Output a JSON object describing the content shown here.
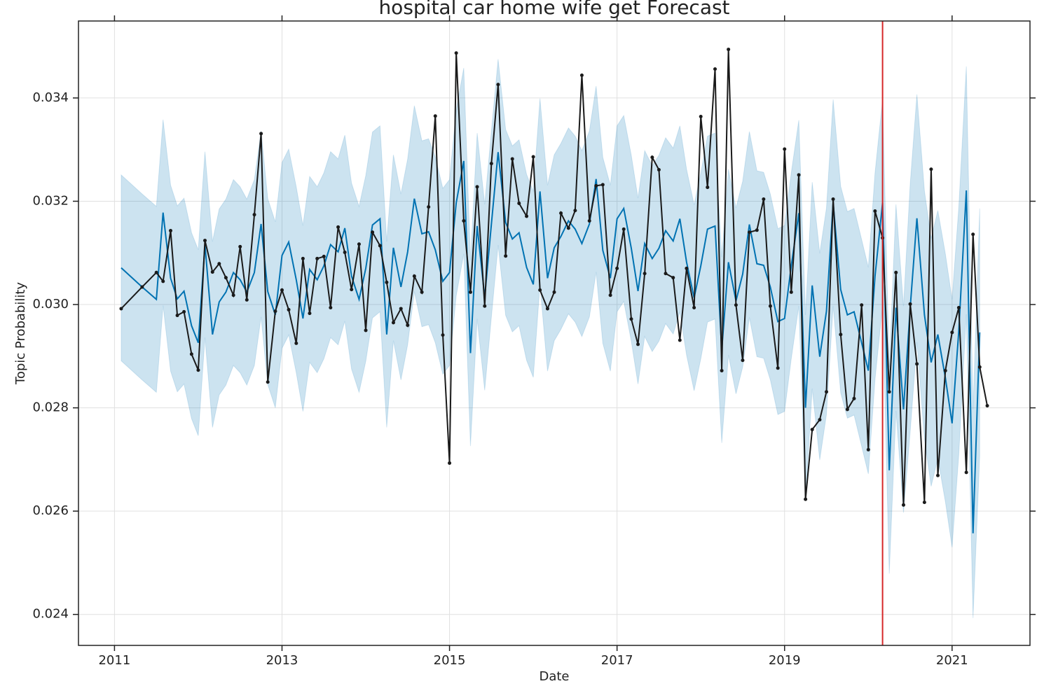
{
  "chart_data": {
    "type": "line",
    "title": "hospital car home wife get Forecast",
    "x_label": "Date",
    "y_label": "Topic Probability",
    "xlim": [
      2010.57,
      2021.93
    ],
    "xticks": [
      2011,
      2013,
      2015,
      2017,
      2019,
      2021
    ],
    "ylim": [
      0.0234,
      0.03549
    ],
    "yticks": [
      0.024,
      0.026,
      0.028,
      {
        "value": 0.03,
        "label": "0.030"
      },
      0.032,
      0.034
    ],
    "grid": true,
    "x": [
      2011.08,
      2011.33,
      2011.5,
      2011.58,
      2011.67,
      2011.75,
      2011.83,
      2011.92,
      2012,
      2012.08,
      2012.17,
      2012.25,
      2012.33,
      2012.42,
      2012.5,
      2012.58,
      2012.67,
      2012.75,
      2012.83,
      2012.92,
      2013,
      2013.08,
      2013.17,
      2013.25,
      2013.33,
      2013.42,
      2013.5,
      2013.58,
      2013.67,
      2013.75,
      2013.83,
      2013.92,
      2014,
      2014.08,
      2014.17,
      2014.25,
      2014.33,
      2014.42,
      2014.5,
      2014.58,
      2014.67,
      2014.75,
      2014.83,
      2014.92,
      2015,
      2015.08,
      2015.17,
      2015.25,
      2015.33,
      2015.42,
      2015.5,
      2015.58,
      2015.67,
      2015.75,
      2015.83,
      2015.92,
      2016,
      2016.08,
      2016.17,
      2016.25,
      2016.33,
      2016.42,
      2016.5,
      2016.58,
      2016.67,
      2016.75,
      2016.83,
      2016.92,
      2017,
      2017.08,
      2017.17,
      2017.25,
      2017.33,
      2017.42,
      2017.5,
      2017.58,
      2017.67,
      2017.75,
      2017.83,
      2017.92,
      2018,
      2018.08,
      2018.17,
      2018.25,
      2018.33,
      2018.42,
      2018.5,
      2018.58,
      2018.67,
      2018.75,
      2018.83,
      2018.92,
      2019,
      2019.08,
      2019.17,
      2019.25,
      2019.33,
      2019.42,
      2019.5,
      2019.58,
      2019.67,
      2019.75,
      2019.83,
      2019.92,
      2020,
      2020.08,
      2020.17,
      2020.25,
      2020.33,
      2020.42,
      2020.5,
      2020.58,
      2020.67,
      2020.75,
      2020.83,
      2020.92,
      2021,
      2021.08,
      2021.17,
      2021.25,
      2021.33,
      2021.42
    ],
    "band": {
      "color": "#0072b2",
      "opacity": 0.2,
      "upper": [
        0.03251,
        0.03214,
        0.0319,
        0.03358,
        0.03231,
        0.03191,
        0.03206,
        0.03139,
        0.03106,
        0.03296,
        0.03122,
        0.03185,
        0.03204,
        0.03242,
        0.03228,
        0.03204,
        0.03242,
        0.03336,
        0.03205,
        0.0316,
        0.03275,
        0.03301,
        0.03228,
        0.03153,
        0.03248,
        0.03228,
        0.03255,
        0.03296,
        0.03282,
        0.03328,
        0.03235,
        0.0319,
        0.0325,
        0.03334,
        0.03346,
        0.03122,
        0.0329,
        0.03214,
        0.03282,
        0.03385,
        0.03317,
        0.03321,
        0.03286,
        0.03225,
        0.03242,
        0.03377,
        0.03458,
        0.03086,
        0.03332,
        0.03194,
        0.03336,
        0.03475,
        0.03339,
        0.03307,
        0.03319,
        0.03252,
        0.03219,
        0.03399,
        0.03231,
        0.0329,
        0.03312,
        0.03342,
        0.03326,
        0.03298,
        0.03336,
        0.03423,
        0.03285,
        0.03231,
        0.03346,
        0.03366,
        0.03289,
        0.03206,
        0.03298,
        0.03269,
        0.03289,
        0.03323,
        0.03303,
        0.03346,
        0.03262,
        0.03193,
        0.03255,
        0.03326,
        0.03332,
        0.03092,
        0.03262,
        0.03187,
        0.03239,
        0.03335,
        0.03259,
        0.03256,
        0.03214,
        0.03147,
        0.03153,
        0.03255,
        0.03357,
        0.0298,
        0.03237,
        0.03099,
        0.03187,
        0.03397,
        0.03229,
        0.0318,
        0.03186,
        0.03126,
        0.03072,
        0.03255,
        0.03397,
        0.02879,
        0.03194,
        0.02997,
        0.03234,
        0.03407,
        0.0322,
        0.03128,
        0.03182,
        0.03098,
        0.0301,
        0.03189,
        0.03461,
        0.02797,
        0.03186,
        null
      ],
      "lower": [
        0.02891,
        0.02854,
        0.0283,
        0.02998,
        0.02871,
        0.02831,
        0.02846,
        0.02779,
        0.02746,
        0.02936,
        0.02762,
        0.02825,
        0.02844,
        0.02882,
        0.02868,
        0.02844,
        0.02882,
        0.02976,
        0.02845,
        0.028,
        0.02915,
        0.02941,
        0.02868,
        0.02793,
        0.02888,
        0.02868,
        0.02895,
        0.02936,
        0.02922,
        0.02968,
        0.02875,
        0.0283,
        0.0289,
        0.02974,
        0.02986,
        0.02762,
        0.0293,
        0.02854,
        0.02922,
        0.03025,
        0.02957,
        0.02961,
        0.02926,
        0.02865,
        0.02882,
        0.03017,
        0.03098,
        0.02726,
        0.02972,
        0.02834,
        0.02976,
        0.03115,
        0.02979,
        0.02947,
        0.02959,
        0.02892,
        0.02859,
        0.03039,
        0.02871,
        0.0293,
        0.02952,
        0.02982,
        0.02966,
        0.02938,
        0.02976,
        0.03063,
        0.02925,
        0.02871,
        0.02986,
        0.03006,
        0.02929,
        0.02846,
        0.02938,
        0.02909,
        0.02929,
        0.02963,
        0.02943,
        0.02986,
        0.02902,
        0.02833,
        0.02895,
        0.02966,
        0.02972,
        0.02732,
        0.02902,
        0.02827,
        0.02879,
        0.02975,
        0.02899,
        0.02896,
        0.02854,
        0.02787,
        0.02793,
        0.02895,
        0.02997,
        0.0262,
        0.02837,
        0.02699,
        0.02787,
        0.02997,
        0.02829,
        0.0278,
        0.02786,
        0.02726,
        0.02672,
        0.02855,
        0.02997,
        0.02479,
        0.02794,
        0.02597,
        0.02754,
        0.02927,
        0.0274,
        0.02648,
        0.02702,
        0.02618,
        0.0253,
        0.02709,
        0.02981,
        0.02393,
        0.02706,
        null
      ]
    },
    "series": [
      {
        "color": "#0072b2",
        "markers": false,
        "values": [
          0.03071,
          0.03034,
          0.0301,
          0.03178,
          0.03051,
          0.03011,
          0.03026,
          0.02959,
          0.02926,
          0.03116,
          0.02942,
          0.03005,
          0.03024,
          0.03062,
          0.03048,
          0.03024,
          0.03062,
          0.03156,
          0.03025,
          0.0298,
          0.03095,
          0.03121,
          0.03048,
          0.02973,
          0.03068,
          0.03048,
          0.03075,
          0.03116,
          0.03102,
          0.03148,
          0.03055,
          0.0301,
          0.0307,
          0.03154,
          0.03166,
          0.02942,
          0.0311,
          0.03034,
          0.03102,
          0.03205,
          0.03137,
          0.03141,
          0.03106,
          0.03045,
          0.03062,
          0.03197,
          0.03278,
          0.02906,
          0.03152,
          0.03014,
          0.03156,
          0.03295,
          0.03159,
          0.03127,
          0.03139,
          0.03072,
          0.03039,
          0.03219,
          0.03051,
          0.0311,
          0.03132,
          0.03162,
          0.03146,
          0.03118,
          0.03156,
          0.03243,
          0.03105,
          0.03051,
          0.03166,
          0.03186,
          0.03109,
          0.03026,
          0.03118,
          0.03089,
          0.03109,
          0.03143,
          0.03123,
          0.03166,
          0.03082,
          0.03013,
          0.03075,
          0.03146,
          0.03152,
          0.02912,
          0.03082,
          0.03007,
          0.03059,
          0.03155,
          0.03079,
          0.03076,
          0.03034,
          0.02967,
          0.02973,
          0.03075,
          0.03177,
          0.028,
          0.03037,
          0.02899,
          0.02987,
          0.03197,
          0.03029,
          0.0298,
          0.02986,
          0.02926,
          0.02872,
          0.03055,
          0.03197,
          0.02679,
          0.02994,
          0.02797,
          0.02994,
          0.03167,
          0.0298,
          0.02888,
          0.02942,
          0.02858,
          0.0277,
          0.02949,
          0.03221,
          0.02557,
          0.02946,
          null
        ]
      },
      {
        "color": "#1a1a1a",
        "markers": true,
        "values": [
          0.02992,
          0.03034,
          0.03062,
          0.03045,
          0.03143,
          0.02979,
          0.02986,
          0.02904,
          0.02873,
          0.03124,
          0.03063,
          0.03079,
          0.03052,
          0.03018,
          0.03112,
          0.03009,
          0.03174,
          0.03331,
          0.0285,
          0.02987,
          0.03028,
          0.0299,
          0.02925,
          0.03089,
          0.02983,
          0.03089,
          0.03093,
          0.02994,
          0.0315,
          0.03101,
          0.03029,
          0.03117,
          0.0295,
          0.0314,
          0.03114,
          0.03043,
          0.02965,
          0.02992,
          0.0296,
          0.03055,
          0.03024,
          0.03189,
          0.03365,
          0.02941,
          0.02693,
          0.03487,
          0.03162,
          0.03024,
          0.03228,
          0.02997,
          0.03273,
          0.03426,
          0.03094,
          0.03282,
          0.03196,
          0.03171,
          0.03286,
          0.03028,
          0.02992,
          0.03024,
          0.03177,
          0.03148,
          0.03182,
          0.03444,
          0.03162,
          0.0323,
          0.03232,
          0.03018,
          0.0307,
          0.03146,
          0.02972,
          0.02923,
          0.0306,
          0.03285,
          0.03261,
          0.0306,
          0.03052,
          0.02931,
          0.0307,
          0.02994,
          0.03364,
          0.03227,
          0.03456,
          0.02872,
          0.03494,
          0.02999,
          0.02892,
          0.0314,
          0.03144,
          0.03204,
          0.02997,
          0.02877,
          0.03301,
          0.03024,
          0.03251,
          0.02623,
          0.02758,
          0.02777,
          0.02831,
          0.03204,
          0.02942,
          0.02797,
          0.02818,
          0.02999,
          0.02719,
          0.03181,
          0.03129,
          0.02831,
          0.03062,
          0.02612,
          0.03001,
          0.02885,
          0.02617,
          0.03262,
          0.02669,
          0.02872,
          0.02946,
          0.02994,
          0.02675,
          0.03136,
          0.02879,
          0.02804
        ]
      }
    ],
    "vline": {
      "x": 2020.17,
      "color": "#d62728"
    }
  }
}
